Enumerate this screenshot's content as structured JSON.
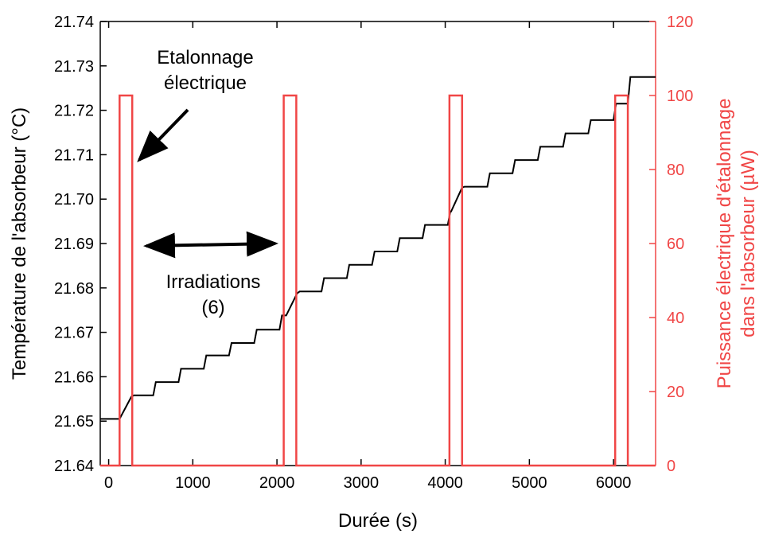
{
  "colors": {
    "temperature": "#000000",
    "power": "#f04646",
    "axes": "#000000"
  },
  "chart_data": {
    "type": "line",
    "xlabel": "Durée (s)",
    "ylabel_left": "Température de l'absorbeur (°C)",
    "ylabel_right_line1": "Puissance électrique d'étalonnage",
    "ylabel_right_line2": "dans l'absorbeur (µW)",
    "xlim": [
      -100,
      6500
    ],
    "ylim_left": [
      21.64,
      21.74
    ],
    "ylim_right": [
      0,
      120
    ],
    "xticks": [
      0,
      1000,
      2000,
      3000,
      4000,
      5000,
      6000
    ],
    "yticks_left": [
      21.64,
      21.65,
      21.66,
      21.67,
      21.68,
      21.69,
      21.7,
      21.71,
      21.72,
      21.73,
      21.74
    ],
    "yticks_left_labels": [
      "21.64",
      "21.65",
      "21.66",
      "21.67",
      "21.68",
      "21.69",
      "21.70",
      "21.71",
      "21.72",
      "21.73",
      "21.74"
    ],
    "yticks_right": [
      0,
      20,
      40,
      60,
      80,
      100,
      120
    ],
    "grid": false,
    "series": [
      {
        "axis": "left",
        "color": "#000000",
        "x": [
          -100,
          130,
          270,
          300,
          400,
          530,
          560,
          700,
          830,
          860,
          1000,
          1130,
          1160,
          1300,
          1430,
          1460,
          1600,
          1730,
          1760,
          1900,
          2030,
          2060,
          2110,
          2240,
          2270,
          2400,
          2530,
          2560,
          2700,
          2830,
          2860,
          3000,
          3130,
          3160,
          3300,
          3430,
          3460,
          3600,
          3730,
          3760,
          3900,
          4030,
          4060,
          4070,
          4200,
          4230,
          4370,
          4500,
          4530,
          4670,
          4800,
          4830,
          4970,
          5100,
          5130,
          5270,
          5400,
          5430,
          5570,
          5700,
          5730,
          5870,
          6000,
          6030,
          6170,
          6200,
          6500
        ],
        "y": [
          21.6505,
          21.6505,
          21.6555,
          21.6558,
          21.6558,
          21.6558,
          21.6588,
          21.6588,
          21.6588,
          21.6618,
          21.6618,
          21.6618,
          21.6648,
          21.6648,
          21.6648,
          21.6676,
          21.6676,
          21.6676,
          21.6706,
          21.6706,
          21.6706,
          21.6738,
          21.6738,
          21.6788,
          21.6792,
          21.6792,
          21.6792,
          21.6822,
          21.6822,
          21.6822,
          21.6852,
          21.6852,
          21.6852,
          21.6882,
          21.6882,
          21.6882,
          21.6912,
          21.6912,
          21.6912,
          21.6942,
          21.6942,
          21.6942,
          21.6972,
          21.6972,
          21.7026,
          21.7028,
          21.7028,
          21.7028,
          21.7058,
          21.7058,
          21.7058,
          21.7088,
          21.7088,
          21.7088,
          21.7118,
          21.7118,
          21.7118,
          21.7148,
          21.7148,
          21.7148,
          21.7178,
          21.7178,
          21.7178,
          21.7215,
          21.7215,
          21.7275,
          21.7275
        ]
      },
      {
        "axis": "right",
        "color": "#f04646",
        "x": [
          -100,
          130,
          130,
          280,
          280,
          2080,
          2080,
          2230,
          2230,
          4050,
          4050,
          4200,
          4200,
          6020,
          6020,
          6170,
          6170,
          6500
        ],
        "y": [
          0,
          0,
          100,
          100,
          0,
          0,
          100,
          100,
          0,
          0,
          100,
          100,
          0,
          0,
          100,
          100,
          0,
          0
        ]
      }
    ],
    "annotations": {
      "etalonnage_line1": "Etalonnage",
      "etalonnage_line2": "électrique",
      "irradiations_line1": "Irradiations",
      "irradiations_line2": "(6)"
    }
  }
}
